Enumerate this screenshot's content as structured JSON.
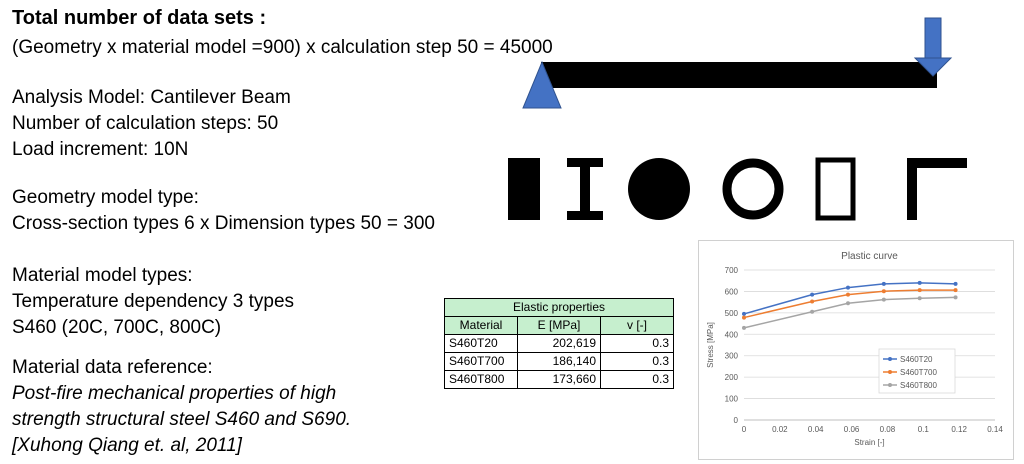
{
  "heading": "Total number of data sets :",
  "formula": "(Geometry x material model =900) x calculation step 50 = 45000",
  "analysis_model": "Analysis Model: Cantilever Beam",
  "calc_steps": "Number of calculation steps: 50",
  "load_increment": "Load increment: 10N",
  "geometry_title": "Geometry model type:",
  "geometry_detail": "Cross-section types 6 x Dimension types 50 = 300",
  "material_title": "Material model types:",
  "temp_dependency": "Temperature dependency 3 types",
  "s460_types": "S460 (20C, 700C, 800C)",
  "reference_title": "Material data reference:",
  "reference_lines": [
    "Post-fire mechanical properties of high",
    "strength structural steel S460 and S690.",
    "[Xuhong Qiang et. al, 2011]"
  ],
  "icons": [
    "cantilever-beam-icon",
    "rectangle-section-icon",
    "i-section-icon",
    "circle-section-icon",
    "tube-section-icon",
    "box-section-icon",
    "angle-section-icon"
  ],
  "table": {
    "title": "Elastic properties",
    "headers": [
      "Material",
      "E [MPa]",
      "v [-]"
    ],
    "rows": [
      [
        "S460T20",
        "202,619",
        "0.3"
      ],
      [
        "S460T700",
        "186,140",
        "0.3"
      ],
      [
        "S460T800",
        "173,660",
        "0.3"
      ]
    ],
    "header_color": "#c6efce"
  },
  "chart_data": {
    "type": "line",
    "title": "Plastic curve",
    "xlabel": "Strain [-]",
    "ylabel": "Stress [MPa]",
    "xlim": [
      0,
      0.14
    ],
    "ylim": [
      0,
      700
    ],
    "xticks": [
      "0",
      "0.02",
      "0.04",
      "0.06",
      "0.08",
      "0.1",
      "0.12",
      "0.14"
    ],
    "yticks": [
      "0",
      "100",
      "200",
      "300",
      "400",
      "500",
      "600",
      "700"
    ],
    "x": [
      0,
      0.038,
      0.058,
      0.078,
      0.098,
      0.118
    ],
    "series": [
      {
        "name": "S460T20",
        "color": "#4472c4",
        "values": [
          495,
          585,
          618,
          635,
          640,
          635
        ]
      },
      {
        "name": "S460T700",
        "color": "#ed7d31",
        "values": [
          478,
          553,
          585,
          601,
          606,
          606
        ]
      },
      {
        "name": "S460T800",
        "color": "#a5a5a5",
        "values": [
          430,
          505,
          545,
          562,
          568,
          572
        ]
      }
    ],
    "grid": true,
    "legend": "inside-right"
  }
}
